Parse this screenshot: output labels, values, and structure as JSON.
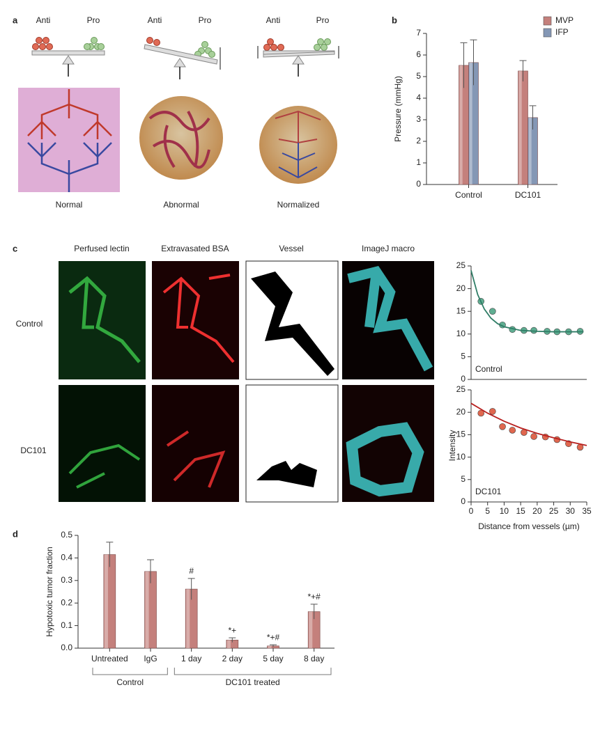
{
  "figure": {
    "panel_labels": [
      "a",
      "b",
      "c",
      "d"
    ],
    "panel_a": {
      "balance_labels": [
        [
          "Anti",
          "Pro"
        ],
        [
          "Anti",
          "Pro"
        ],
        [
          "Anti",
          "Pro"
        ]
      ],
      "captions": [
        "Normal",
        "Abnormal",
        "Normalized"
      ]
    },
    "panel_c": {
      "columns": [
        "Perfused lectin",
        "Extravasated BSA",
        "Vessel",
        "ImageJ macro"
      ],
      "rows": [
        "Control",
        "DC101"
      ],
      "y_label": "Intensity"
    }
  },
  "chart_data": [
    {
      "type": "bar",
      "y_label": "Pressure (mmHg)",
      "categories": [
        "Control",
        "DC101"
      ],
      "series": [
        {
          "name": "MVP",
          "color": "#c4807c",
          "values": [
            5.52,
            5.26
          ],
          "errors": [
            1.05,
            0.48
          ]
        },
        {
          "name": "IFP",
          "color": "#8497b5",
          "values": [
            5.65,
            3.1
          ],
          "errors": [
            1.05,
            0.55
          ]
        }
      ],
      "ylim": [
        0,
        7
      ],
      "yticks": [
        0,
        1,
        2,
        3,
        4,
        5,
        6,
        7
      ],
      "legend": "upper right"
    },
    {
      "type": "scatter",
      "annotation": "Control",
      "xlim": [
        0,
        35
      ],
      "ylim": [
        0,
        25
      ],
      "yticks": [
        0,
        5,
        10,
        15,
        20,
        25
      ],
      "series": [
        {
          "style": "markers",
          "color": "#5fae92",
          "x": [
            3,
            6.5,
            9.5,
            12.5,
            16,
            19,
            23,
            26,
            29.5,
            33
          ],
          "values": [
            17.2,
            15,
            12,
            11,
            10.8,
            10.8,
            10.6,
            10.5,
            10.5,
            10.6
          ]
        },
        {
          "style": "line",
          "color": "#2f7d66",
          "x": [
            0,
            2,
            4,
            6,
            8,
            10,
            15,
            20,
            25,
            30,
            34
          ],
          "values": [
            24,
            18.7,
            15.5,
            13.5,
            12.3,
            11.6,
            10.8,
            10.6,
            10.5,
            10.5,
            10.5
          ]
        }
      ]
    },
    {
      "type": "scatter",
      "annotation": "DC101",
      "x_label": "Distance from vessels (µm)",
      "xlim": [
        0,
        35
      ],
      "xticks": [
        0,
        5,
        10,
        15,
        20,
        25,
        30,
        35
      ],
      "ylim": [
        0,
        25
      ],
      "yticks": [
        0,
        5,
        10,
        15,
        20,
        25
      ],
      "series": [
        {
          "style": "markers",
          "color": "#e0674f",
          "x": [
            3,
            6.5,
            9.5,
            12.5,
            16,
            19,
            22.5,
            26,
            29.5,
            33
          ],
          "values": [
            19.8,
            20.2,
            16.8,
            16,
            15.5,
            14.6,
            14.5,
            13.9,
            13,
            12.2
          ]
        },
        {
          "style": "line",
          "color": "#b8201f",
          "x": [
            0,
            5,
            10,
            15,
            20,
            25,
            30,
            35
          ],
          "values": [
            22,
            19.8,
            18,
            16.5,
            15.3,
            14.3,
            13.4,
            12.6
          ]
        }
      ]
    },
    {
      "type": "bar",
      "y_label": "Hypotoxic tumor fraction",
      "categories": [
        "Untreated",
        "IgG",
        "1 day",
        "2 day",
        "5 day",
        "8 day"
      ],
      "color": "#c4807c",
      "values": [
        0.415,
        0.34,
        0.262,
        0.036,
        0.01,
        0.162
      ],
      "errors": [
        0.055,
        0.052,
        0.047,
        0.01,
        0.005,
        0.033
      ],
      "annotations": [
        null,
        null,
        "#",
        "*+",
        "*+#",
        "*+#"
      ],
      "groups": [
        {
          "label": "Control",
          "size": 2
        },
        {
          "label": "DC101 treated",
          "size": 4
        }
      ],
      "ylim": [
        0,
        0.5
      ],
      "yticks": [
        {
          "value": 0,
          "label": "0.0"
        },
        0.1,
        0.2,
        0.3,
        0.4,
        0.5
      ]
    }
  ]
}
